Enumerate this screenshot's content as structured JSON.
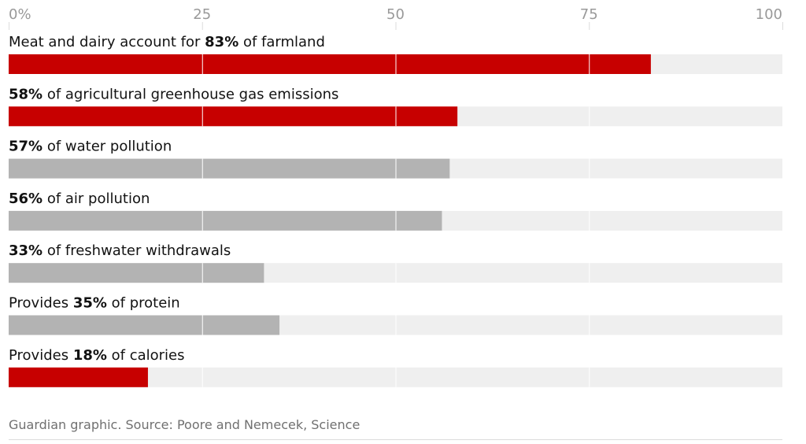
{
  "chart_data": {
    "type": "bar",
    "categories": [
      [
        {
          "t": "Meat and dairy account for "
        },
        {
          "b": "83%"
        },
        {
          "t": " of farmland"
        }
      ],
      [
        {
          "b": "58%"
        },
        {
          "t": " of agricultural greenhouse gas emissions"
        }
      ],
      [
        {
          "b": "57%"
        },
        {
          "t": " of water pollution"
        }
      ],
      [
        {
          "b": "56%"
        },
        {
          "t": " of air pollution"
        }
      ],
      [
        {
          "b": "33%"
        },
        {
          "t": " of freshwater withdrawals"
        }
      ],
      [
        {
          "t": "Provides "
        },
        {
          "b": "35%"
        },
        {
          "t": " of protein"
        }
      ],
      [
        {
          "t": "Provides "
        },
        {
          "b": "18%"
        },
        {
          "t": " of calories"
        }
      ]
    ],
    "values": [
      83,
      58,
      57,
      56,
      33,
      35,
      18
    ],
    "colors": [
      "#c70000",
      "#c70000",
      "#b3b3b3",
      "#b3b3b3",
      "#b3b3b3",
      "#b3b3b3",
      "#c70000"
    ],
    "track_color": "#efefef",
    "xlim": [
      0,
      100
    ],
    "xticks": [
      {
        "value": 0,
        "label": "0%"
      },
      25,
      50,
      75,
      100
    ],
    "grid": true,
    "source": "Guardian graphic. Source: Poore and Nemecek, Science"
  }
}
